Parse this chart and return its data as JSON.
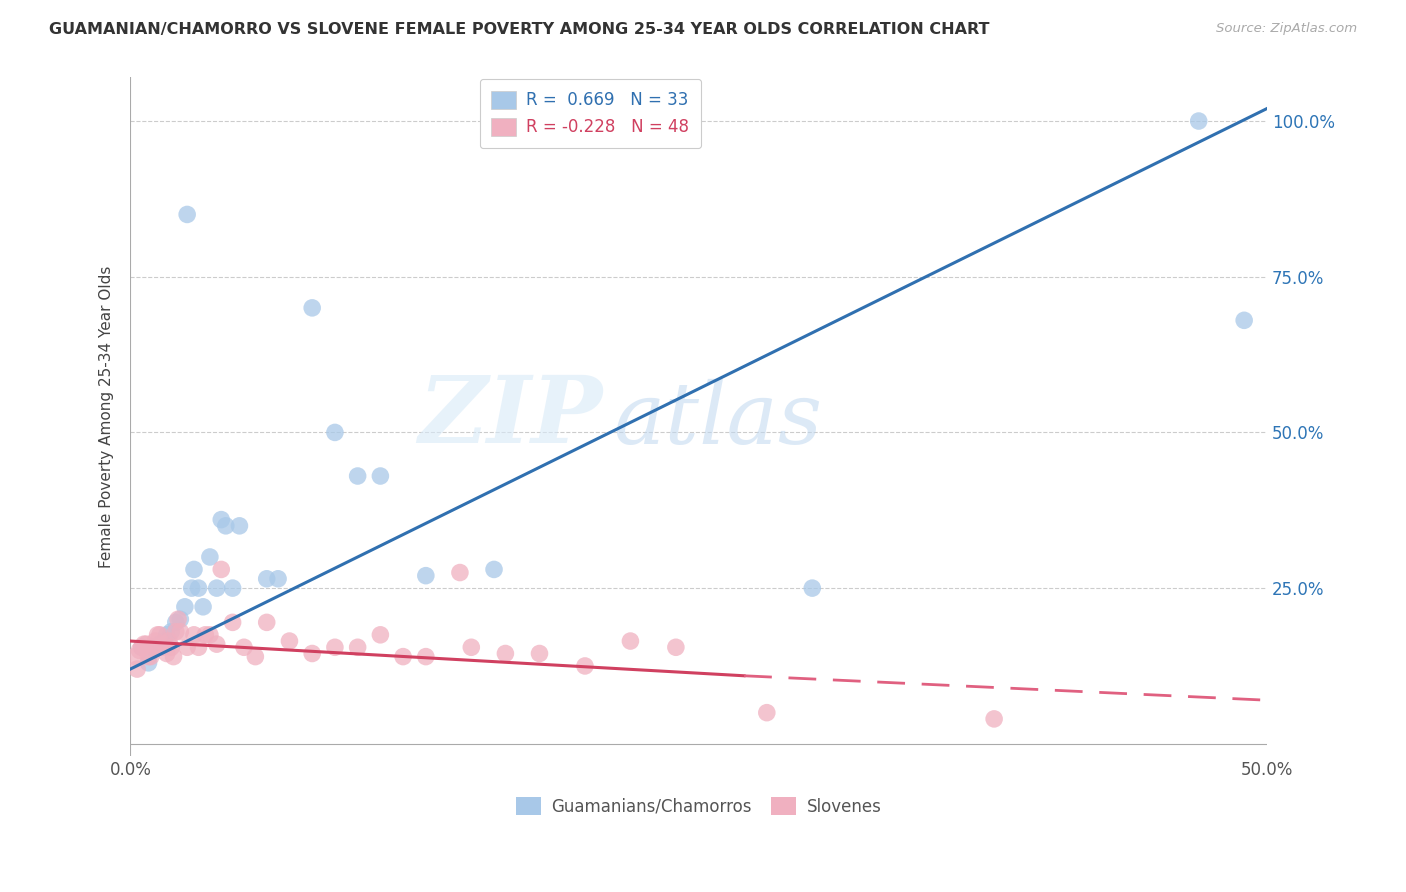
{
  "title": "GUAMANIAN/CHAMORRO VS SLOVENE FEMALE POVERTY AMONG 25-34 YEAR OLDS CORRELATION CHART",
  "source": "Source: ZipAtlas.com",
  "ylabel": "Female Poverty Among 25-34 Year Olds",
  "legend_label1": "Guamanians/Chamorros",
  "legend_label2": "Slovenes",
  "R1": 0.669,
  "N1": 33,
  "R2": -0.228,
  "N2": 48,
  "xlim": [
    0,
    0.5
  ],
  "ylim": [
    -0.02,
    1.07
  ],
  "xticks": [
    0.0,
    0.1,
    0.2,
    0.3,
    0.4,
    0.5
  ],
  "yticks": [
    0.0,
    0.25,
    0.5,
    0.75,
    1.0
  ],
  "ytick_labels_right": [
    "",
    "25.0%",
    "50.0%",
    "75.0%",
    "100.0%"
  ],
  "xtick_labels": [
    "0.0%",
    "",
    "",
    "",
    "",
    "50.0%"
  ],
  "color_blue": "#a8c8e8",
  "color_blue_line": "#3070b0",
  "color_pink": "#f0b0c0",
  "color_pink_line": "#d04060",
  "color_pink_line_dash": "#e06080",
  "background": "#ffffff",
  "watermark_zip": "ZIP",
  "watermark_atlas": "atlas",
  "blue_points_x": [
    0.005,
    0.008,
    0.01,
    0.012,
    0.013,
    0.015,
    0.016,
    0.018,
    0.02,
    0.022,
    0.024,
    0.025,
    0.027,
    0.028,
    0.03,
    0.032,
    0.035,
    0.038,
    0.04,
    0.042,
    0.045,
    0.048,
    0.06,
    0.065,
    0.08,
    0.09,
    0.1,
    0.11,
    0.13,
    0.16,
    0.3,
    0.47,
    0.49
  ],
  "blue_points_y": [
    0.155,
    0.13,
    0.155,
    0.155,
    0.16,
    0.165,
    0.175,
    0.18,
    0.195,
    0.2,
    0.22,
    0.85,
    0.25,
    0.28,
    0.25,
    0.22,
    0.3,
    0.25,
    0.36,
    0.35,
    0.25,
    0.35,
    0.265,
    0.265,
    0.7,
    0.5,
    0.43,
    0.43,
    0.27,
    0.28,
    0.25,
    1.0,
    0.68
  ],
  "pink_points_x": [
    0.002,
    0.003,
    0.004,
    0.005,
    0.006,
    0.007,
    0.008,
    0.009,
    0.01,
    0.011,
    0.012,
    0.013,
    0.014,
    0.015,
    0.016,
    0.017,
    0.018,
    0.019,
    0.02,
    0.021,
    0.022,
    0.025,
    0.028,
    0.03,
    0.033,
    0.035,
    0.038,
    0.04,
    0.045,
    0.05,
    0.055,
    0.06,
    0.07,
    0.08,
    0.09,
    0.1,
    0.11,
    0.12,
    0.13,
    0.145,
    0.15,
    0.165,
    0.18,
    0.2,
    0.22,
    0.24,
    0.28,
    0.38
  ],
  "pink_points_y": [
    0.14,
    0.12,
    0.15,
    0.155,
    0.16,
    0.16,
    0.14,
    0.14,
    0.155,
    0.165,
    0.175,
    0.175,
    0.155,
    0.16,
    0.145,
    0.165,
    0.155,
    0.14,
    0.18,
    0.2,
    0.18,
    0.155,
    0.175,
    0.155,
    0.175,
    0.175,
    0.16,
    0.28,
    0.195,
    0.155,
    0.14,
    0.195,
    0.165,
    0.145,
    0.155,
    0.155,
    0.175,
    0.14,
    0.14,
    0.275,
    0.155,
    0.145,
    0.145,
    0.125,
    0.165,
    0.155,
    0.05,
    0.04
  ],
  "blue_line_x": [
    0.0,
    0.5
  ],
  "blue_line_y": [
    0.12,
    1.02
  ],
  "pink_line_x": [
    0.0,
    0.46
  ],
  "pink_line_y": [
    0.165,
    0.07
  ]
}
